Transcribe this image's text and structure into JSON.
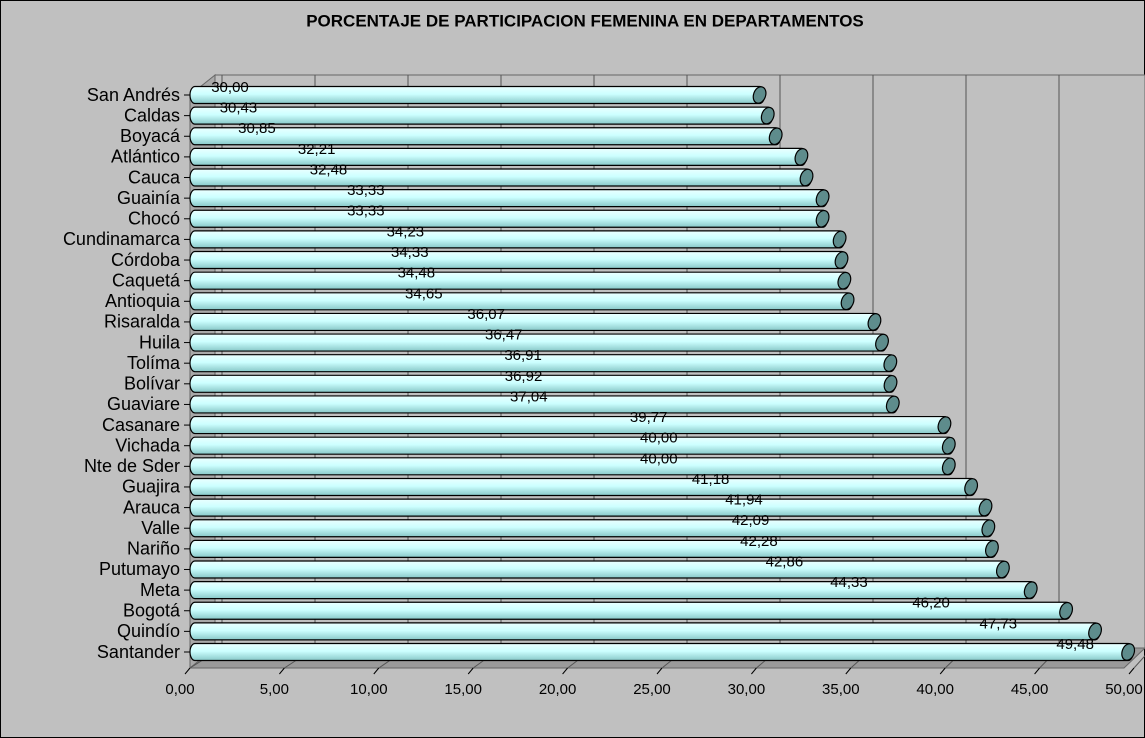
{
  "chart_data": {
    "type": "bar",
    "orientation": "horizontal",
    "title": "PORCENTAJE DE PARTICIPACION FEMENINA EN DEPARTAMENTOS",
    "categories": [
      "San Andrés",
      "Caldas",
      "Boyacá",
      "Atlántico",
      "Cauca",
      "Guainía",
      "Chocó",
      "Cundinamarca",
      "Córdoba",
      "Caquetá",
      "Antioquia",
      "Risaralda",
      "Huila",
      "Tolíma",
      "Bolívar",
      "Guaviare",
      "Casanare",
      "Vichada",
      "Nte de Sder",
      "Guajira",
      "Arauca",
      "Valle",
      "Nariño",
      "Putumayo",
      "Meta",
      "Bogotá",
      "Quindío",
      "Santander"
    ],
    "values": [
      30.0,
      30.43,
      30.85,
      32.21,
      32.48,
      33.33,
      33.33,
      34.23,
      34.33,
      34.48,
      34.65,
      36.07,
      36.47,
      36.91,
      36.92,
      37.04,
      39.77,
      40.0,
      40.0,
      41.18,
      41.94,
      42.09,
      42.28,
      42.86,
      44.33,
      46.2,
      47.73,
      49.48
    ],
    "value_labels": [
      "30,00",
      "30,43",
      "30,85",
      "32,21",
      "32,48",
      "33,33",
      "33,33",
      "34,23",
      "34,33",
      "34,48",
      "34,65",
      "36,07",
      "36,47",
      "36,91",
      "36,92",
      "37,04",
      "39,77",
      "40,00",
      "40,00",
      "41,18",
      "41,94",
      "42,09",
      "42,28",
      "42,86",
      "44,33",
      "46,20",
      "47,73",
      "49,48"
    ],
    "color": "#ccffff",
    "xlim": [
      0,
      50
    ],
    "xticks": [
      {
        "value": 0,
        "label": "0,00"
      },
      {
        "value": 5,
        "label": "5,00"
      },
      {
        "value": 10,
        "label": "10,00"
      },
      {
        "value": 15,
        "label": "15,00"
      },
      {
        "value": 20,
        "label": "20,00"
      },
      {
        "value": 25,
        "label": "25,00"
      },
      {
        "value": 30,
        "label": "30,00"
      },
      {
        "value": 35,
        "label": "35,00"
      },
      {
        "value": 40,
        "label": "40,00"
      },
      {
        "value": 45,
        "label": "45,00"
      },
      {
        "value": 50,
        "label": "50,00"
      }
    ],
    "grid": true
  }
}
